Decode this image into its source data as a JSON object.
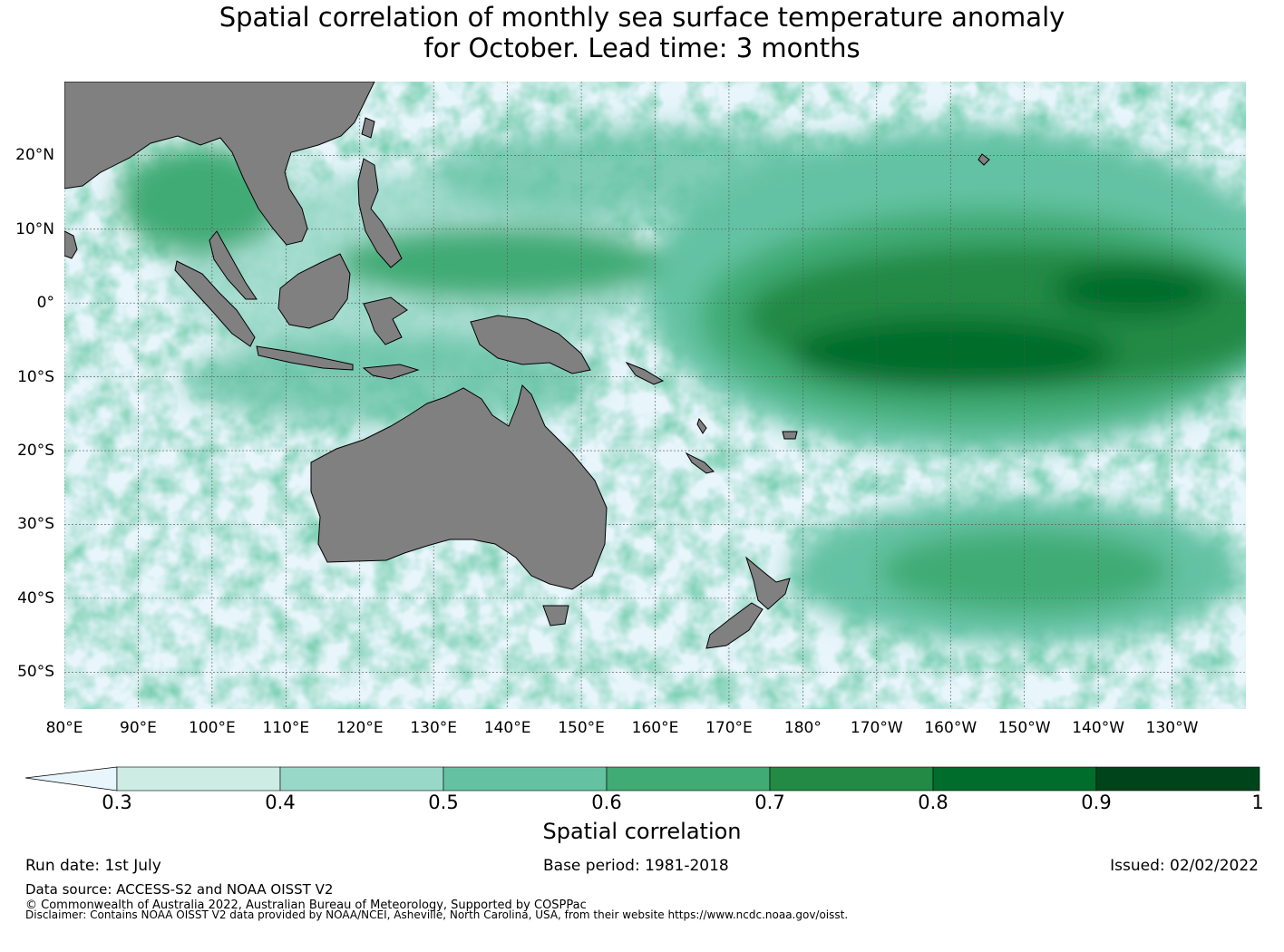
{
  "title_line1": "Spatial correlation of monthly sea surface temperature anomaly",
  "title_line2": "for October. Lead time: 3 months",
  "map": {
    "lon_range": [
      80,
      240
    ],
    "lat_range": [
      -55,
      30
    ],
    "lat_labels": [
      "20°N",
      "10°N",
      "0°",
      "10°S",
      "20°S",
      "30°S",
      "40°S",
      "50°S"
    ],
    "lat_values": [
      20,
      10,
      0,
      -10,
      -20,
      -30,
      -40,
      -50
    ],
    "lon_labels": [
      "80°E",
      "90°E",
      "100°E",
      "110°E",
      "120°E",
      "130°E",
      "140°E",
      "150°E",
      "160°E",
      "170°E",
      "180°",
      "170°W",
      "160°W",
      "150°W",
      "140°W",
      "130°W"
    ],
    "lon_values": [
      80,
      90,
      100,
      110,
      120,
      130,
      140,
      150,
      160,
      170,
      180,
      190,
      200,
      210,
      220,
      230
    ],
    "land_color": "#808080",
    "ocean_below_color": "#e8f5fb"
  },
  "colorbar": {
    "label": "Spatial correlation",
    "ticks": [
      "0.3",
      "0.4",
      "0.5",
      "0.6",
      "0.7",
      "0.8",
      "0.9",
      "1"
    ],
    "tick_values": [
      0.3,
      0.4,
      0.5,
      0.6,
      0.7,
      0.8,
      0.9,
      1.0
    ],
    "colors": [
      "#e8f5fb",
      "#ccece4",
      "#98d8c8",
      "#64c2a3",
      "#40ab74",
      "#228a44",
      "#006d2c",
      "#00441b"
    ]
  },
  "footer": {
    "run_date": "Run date: 1st July",
    "base_period": "Base period: 1981-2018",
    "issued": "Issued: 02/02/2022",
    "data_source": "Data source: ACCESS-S2 and NOAA OISST V2",
    "copyright": "© Commonwealth of Australia 2022, Australian Bureau of Meteorology, Supported by COSPPac",
    "disclaimer": "Disclaimer: Contains NOAA OISST V2 data provided by NOAA/NCEI, Asheville, North Carolina, USA, from their website https://www.ncdc.noaa.gov/oisst."
  }
}
